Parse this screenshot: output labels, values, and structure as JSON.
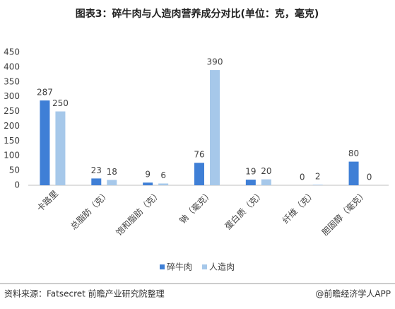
{
  "chart_data": {
    "type": "bar",
    "title": "图表3：碎牛肉与人造肉营养成分对比(单位：克，毫克)",
    "categories": [
      "卡路里",
      "总脂肪（克）",
      "饱和脂肪（克）",
      "钠（毫克）",
      "蛋白质（克）",
      "纤维（克）",
      "胆固醇（毫克）"
    ],
    "series": [
      {
        "name": "碎牛肉",
        "color": "#3f7fd6",
        "values": [
          287,
          23,
          9,
          76,
          19,
          0,
          80
        ]
      },
      {
        "name": "人造肉",
        "color": "#a6c8ea",
        "values": [
          250,
          18,
          6,
          390,
          20,
          2,
          0
        ]
      }
    ],
    "ylim": [
      0,
      450
    ],
    "yticks": [
      0,
      50,
      100,
      150,
      200,
      250,
      300,
      350,
      400,
      450
    ],
    "grid": false,
    "legend": "bottom",
    "source": "资料来源：Fatsecret 前瞻产业研究院整理",
    "credit": "@前瞻经济学人APP"
  }
}
